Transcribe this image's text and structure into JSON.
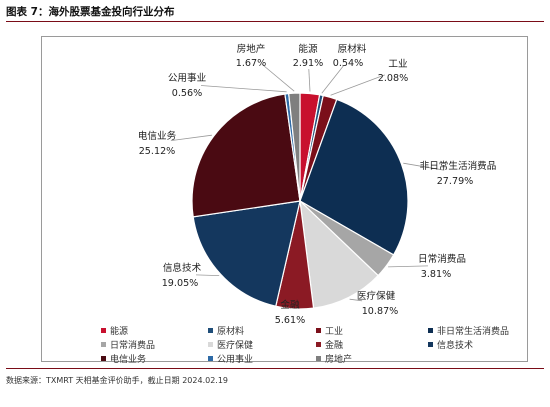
{
  "title": "图表 7：海外股票基金投向行业分布",
  "source": "数据来源：TXMRT 天相基金评价助手，截止日期 2024.02.19",
  "chart_data": {
    "type": "pie",
    "title": "",
    "unit": "%",
    "slices": [
      {
        "name": "能源",
        "value": 2.91,
        "label": "2.91%",
        "color": "#c8102e"
      },
      {
        "name": "原材料",
        "value": 0.54,
        "label": "0.54%",
        "color": "#1f4e79"
      },
      {
        "name": "工业",
        "value": 2.08,
        "label": "2.08%",
        "color": "#7b0f1a"
      },
      {
        "name": "非日常生活消费品",
        "value": 27.79,
        "label": "27.79%",
        "color": "#0d2e52"
      },
      {
        "name": "日常消费品",
        "value": 3.81,
        "label": "3.81%",
        "color": "#a6a6a6"
      },
      {
        "name": "医疗保健",
        "value": 10.87,
        "label": "10.87%",
        "color": "#d9d9d9"
      },
      {
        "name": "金融",
        "value": 5.61,
        "label": "5.61%",
        "color": "#8b1a24"
      },
      {
        "name": "信息技术",
        "value": 19.05,
        "label": "19.05%",
        "color": "#14375e"
      },
      {
        "name": "电信业务",
        "value": 25.12,
        "label": "25.12%",
        "color": "#4a0a12"
      },
      {
        "name": "公用事业",
        "value": 0.56,
        "label": "0.56%",
        "color": "#2e6aa6"
      },
      {
        "name": "房地产",
        "value": 1.67,
        "label": "1.67%",
        "color": "#7f7f7f"
      }
    ],
    "legend": {
      "placement": "bottom"
    }
  }
}
